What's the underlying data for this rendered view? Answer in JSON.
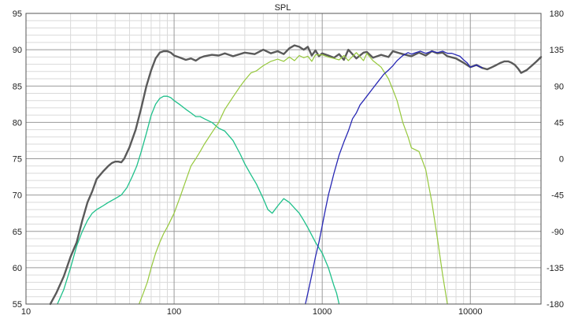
{
  "chart_data": {
    "type": "line",
    "title": "SPL",
    "x_scale": "log",
    "xlim": [
      10,
      30000
    ],
    "ylim": [
      55,
      95
    ],
    "y2lim": [
      -180,
      180
    ],
    "x_ticks": [
      10,
      100,
      1000,
      10000
    ],
    "x_tick_labels": [
      "10",
      "100",
      "1000",
      "10000"
    ],
    "y_ticks": [
      55,
      60,
      65,
      70,
      75,
      80,
      85,
      90,
      95
    ],
    "y_tick_labels": [
      "55",
      "60",
      "65",
      "70",
      "75",
      "80",
      "85",
      "90",
      "95"
    ],
    "y2_ticks": [
      -180,
      -135,
      -90,
      -45,
      0,
      45,
      90,
      135,
      180
    ],
    "y2_tick_labels": [
      "-180",
      "-135",
      "-90",
      "-45",
      "0",
      "45",
      "90",
      "135",
      "180"
    ],
    "grid": true,
    "legend": "none",
    "colors": {
      "sum": "#5a5a5a",
      "woofer": "#1ec08a",
      "mid": "#96c83c",
      "tweeter": "#2828b4",
      "grid_major": "#9a9a9a",
      "grid_minor": "#dadada",
      "frame": "#555555"
    },
    "series": [
      {
        "key": "sum",
        "x": [
          14.6,
          16,
          18,
          20,
          22,
          24,
          26,
          28,
          30,
          33,
          36,
          38,
          40,
          42,
          44,
          46,
          50,
          55,
          60,
          65,
          70,
          75,
          80,
          85,
          90,
          95,
          100,
          110,
          120,
          130,
          140,
          150,
          160,
          180,
          200,
          220,
          250,
          300,
          350,
          400,
          450,
          500,
          550,
          600,
          650,
          700,
          750,
          800,
          850,
          900,
          950,
          1000,
          1100,
          1200,
          1300,
          1400,
          1500,
          1700,
          1900,
          2000,
          2200,
          2500,
          2800,
          3000,
          3500,
          4000,
          4500,
          5000,
          5500,
          6000,
          6500,
          7000,
          8000,
          9000,
          10000,
          11000,
          12000,
          13000,
          14000,
          15000,
          16000,
          17000,
          18000,
          19000,
          20000,
          21000,
          22000,
          24000,
          26000,
          28000,
          30000
        ],
        "y": [
          55,
          56.5,
          58.8,
          61.5,
          63.5,
          66.5,
          69,
          70.5,
          72.2,
          73.2,
          74,
          74.4,
          74.6,
          74.6,
          74.5,
          75,
          76.6,
          79,
          82,
          85,
          87.2,
          88.8,
          89.6,
          89.8,
          89.8,
          89.6,
          89.2,
          88.9,
          88.6,
          88.8,
          88.5,
          88.9,
          89.1,
          89.3,
          89.2,
          89.5,
          89.1,
          89.6,
          89.4,
          90,
          89.5,
          89.8,
          89.4,
          90.2,
          90.6,
          90.4,
          90.0,
          90.4,
          89.2,
          89.9,
          89.1,
          89.5,
          89.2,
          88.9,
          89.4,
          88.6,
          90.0,
          88.8,
          89.6,
          89.7,
          88.9,
          89.3,
          89.0,
          89.8,
          89.4,
          89.1,
          89.6,
          89.2,
          89.8,
          89.5,
          89.6,
          89.1,
          88.8,
          88.2,
          87.6,
          87.9,
          87.5,
          87.3,
          87.6,
          87.9,
          88.2,
          88.4,
          88.4,
          88.2,
          87.9,
          87.4,
          86.8,
          87.2,
          87.8,
          88.4,
          89
        ]
      },
      {
        "key": "woofer",
        "x": [
          16.3,
          18,
          20,
          22,
          24,
          26,
          28,
          30,
          33,
          36,
          40,
          44,
          48,
          52,
          56,
          60,
          65,
          70,
          75,
          80,
          85,
          90,
          95,
          100,
          110,
          120,
          130,
          140,
          150,
          160,
          180,
          200,
          220,
          250,
          280,
          300,
          330,
          360,
          400,
          430,
          460,
          500,
          550,
          600,
          650,
          700,
          750,
          800,
          900,
          1000,
          1100,
          1200,
          1250,
          1300
        ],
        "y": [
          55,
          57,
          60,
          63,
          65,
          66.5,
          67.5,
          68,
          68.5,
          69,
          69.5,
          70,
          71,
          72.5,
          74,
          76,
          78.5,
          81,
          82.5,
          83.3,
          83.6,
          83.6,
          83.4,
          83,
          82.4,
          81.8,
          81.3,
          80.8,
          80.8,
          80.5,
          80,
          79.2,
          78.8,
          77.5,
          75.6,
          74.3,
          72.8,
          71.5,
          69.5,
          68,
          67.5,
          68.5,
          69.5,
          69,
          68.2,
          67.5,
          66.5,
          65.5,
          63.5,
          62,
          60,
          57.5,
          56.5,
          55
        ]
      },
      {
        "key": "mid",
        "x": [
          58,
          62,
          66,
          70,
          75,
          80,
          85,
          90,
          100,
          110,
          120,
          130,
          140,
          150,
          160,
          180,
          200,
          220,
          250,
          280,
          300,
          330,
          360,
          400,
          450,
          500,
          550,
          600,
          650,
          700,
          750,
          800,
          850,
          900,
          1000,
          1100,
          1200,
          1300,
          1400,
          1500,
          1700,
          1900,
          2000,
          2200,
          2500,
          2800,
          3000,
          3200,
          3500,
          3800,
          4000,
          4500,
          5000,
          5500,
          6000,
          6500,
          7000
        ],
        "y": [
          55,
          56.5,
          58,
          60,
          62,
          63.5,
          64.7,
          65.6,
          67.5,
          69.8,
          72,
          74,
          75,
          76,
          77,
          78.6,
          80,
          81.8,
          83.5,
          85,
          85.8,
          86.8,
          87.1,
          87.8,
          88.4,
          88.7,
          88.4,
          89,
          88.5,
          89.2,
          88.9,
          89.1,
          88.4,
          89.3,
          89.3,
          89,
          88.8,
          88.6,
          89.2,
          88.5,
          89.6,
          88.5,
          89.5,
          88.5,
          87.6,
          86,
          84.5,
          83,
          80,
          78,
          76.5,
          76,
          73.5,
          69,
          64,
          59,
          55
        ]
      },
      {
        "key": "tweeter",
        "x": [
          770,
          800,
          850,
          900,
          950,
          1000,
          1050,
          1100,
          1150,
          1200,
          1300,
          1400,
          1500,
          1600,
          1700,
          1800,
          1900,
          2000,
          2200,
          2400,
          2600,
          2800,
          3000,
          3200,
          3500,
          3800,
          4000,
          4300,
          4600,
          5000,
          5500,
          6000,
          6500,
          7000,
          7500,
          8000,
          8500,
          9000,
          9500,
          10000,
          11000,
          12000
        ],
        "y": [
          55,
          56.5,
          59,
          61.5,
          63.5,
          65.8,
          68,
          70,
          71.5,
          73,
          75.5,
          77.3,
          78.8,
          80.5,
          81.3,
          82.4,
          83,
          83.6,
          84.7,
          85.7,
          86.6,
          87.2,
          87.8,
          88.5,
          89.2,
          89.6,
          89.4,
          89.6,
          89.8,
          89.5,
          89.8,
          89.6,
          89.8,
          89.5,
          89.5,
          89.3,
          89.1,
          88.6,
          88.2,
          87.6,
          87.9,
          87.5
        ]
      }
    ]
  }
}
